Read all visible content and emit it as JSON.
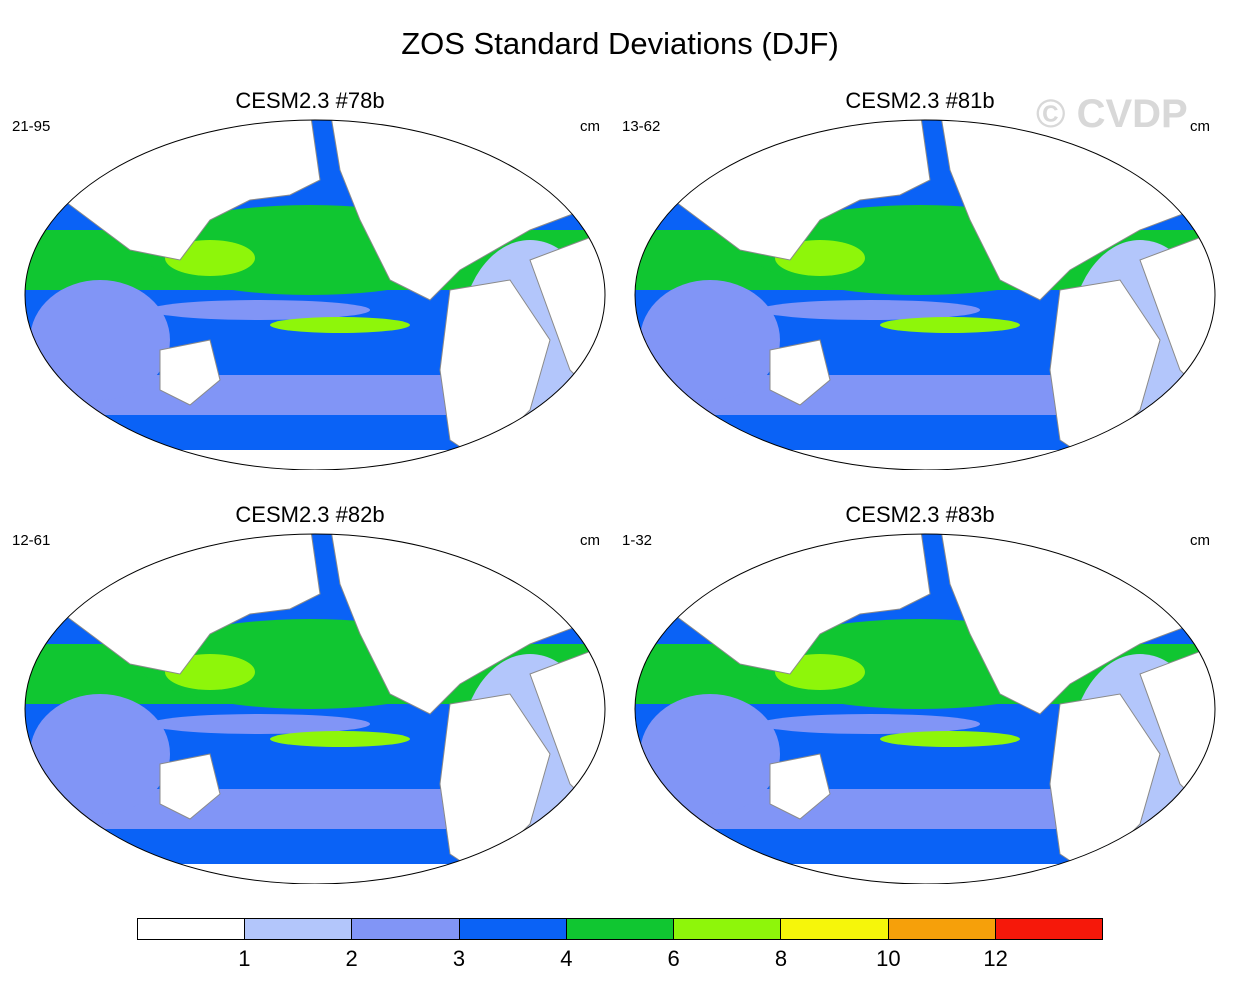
{
  "title": "ZOS Standard Deviations (DJF)",
  "watermark": "© CVDP",
  "colors": {
    "levels": [
      "#ffffff",
      "#b3c6fb",
      "#8195f6",
      "#0a62f6",
      "#10c631",
      "#8ef60a",
      "#f6f60a",
      "#f6a00a",
      "#f6180a"
    ],
    "land": "#ffffff",
    "coast": "#8a8a8a"
  },
  "panels": [
    {
      "title": "CESM2.3 #78b",
      "left_label": "21-95",
      "right_label": "cm"
    },
    {
      "title": "CESM2.3 #81b",
      "left_label": "13-62",
      "right_label": "cm"
    },
    {
      "title": "CESM2.3 #82b",
      "left_label": "12-61",
      "right_label": "cm"
    },
    {
      "title": "CESM2.3 #83b",
      "left_label": "1-32",
      "right_label": "cm"
    }
  ],
  "colorbar": {
    "labels": [
      "1",
      "2",
      "3",
      "4",
      "6",
      "8",
      "10",
      "12"
    ]
  }
}
